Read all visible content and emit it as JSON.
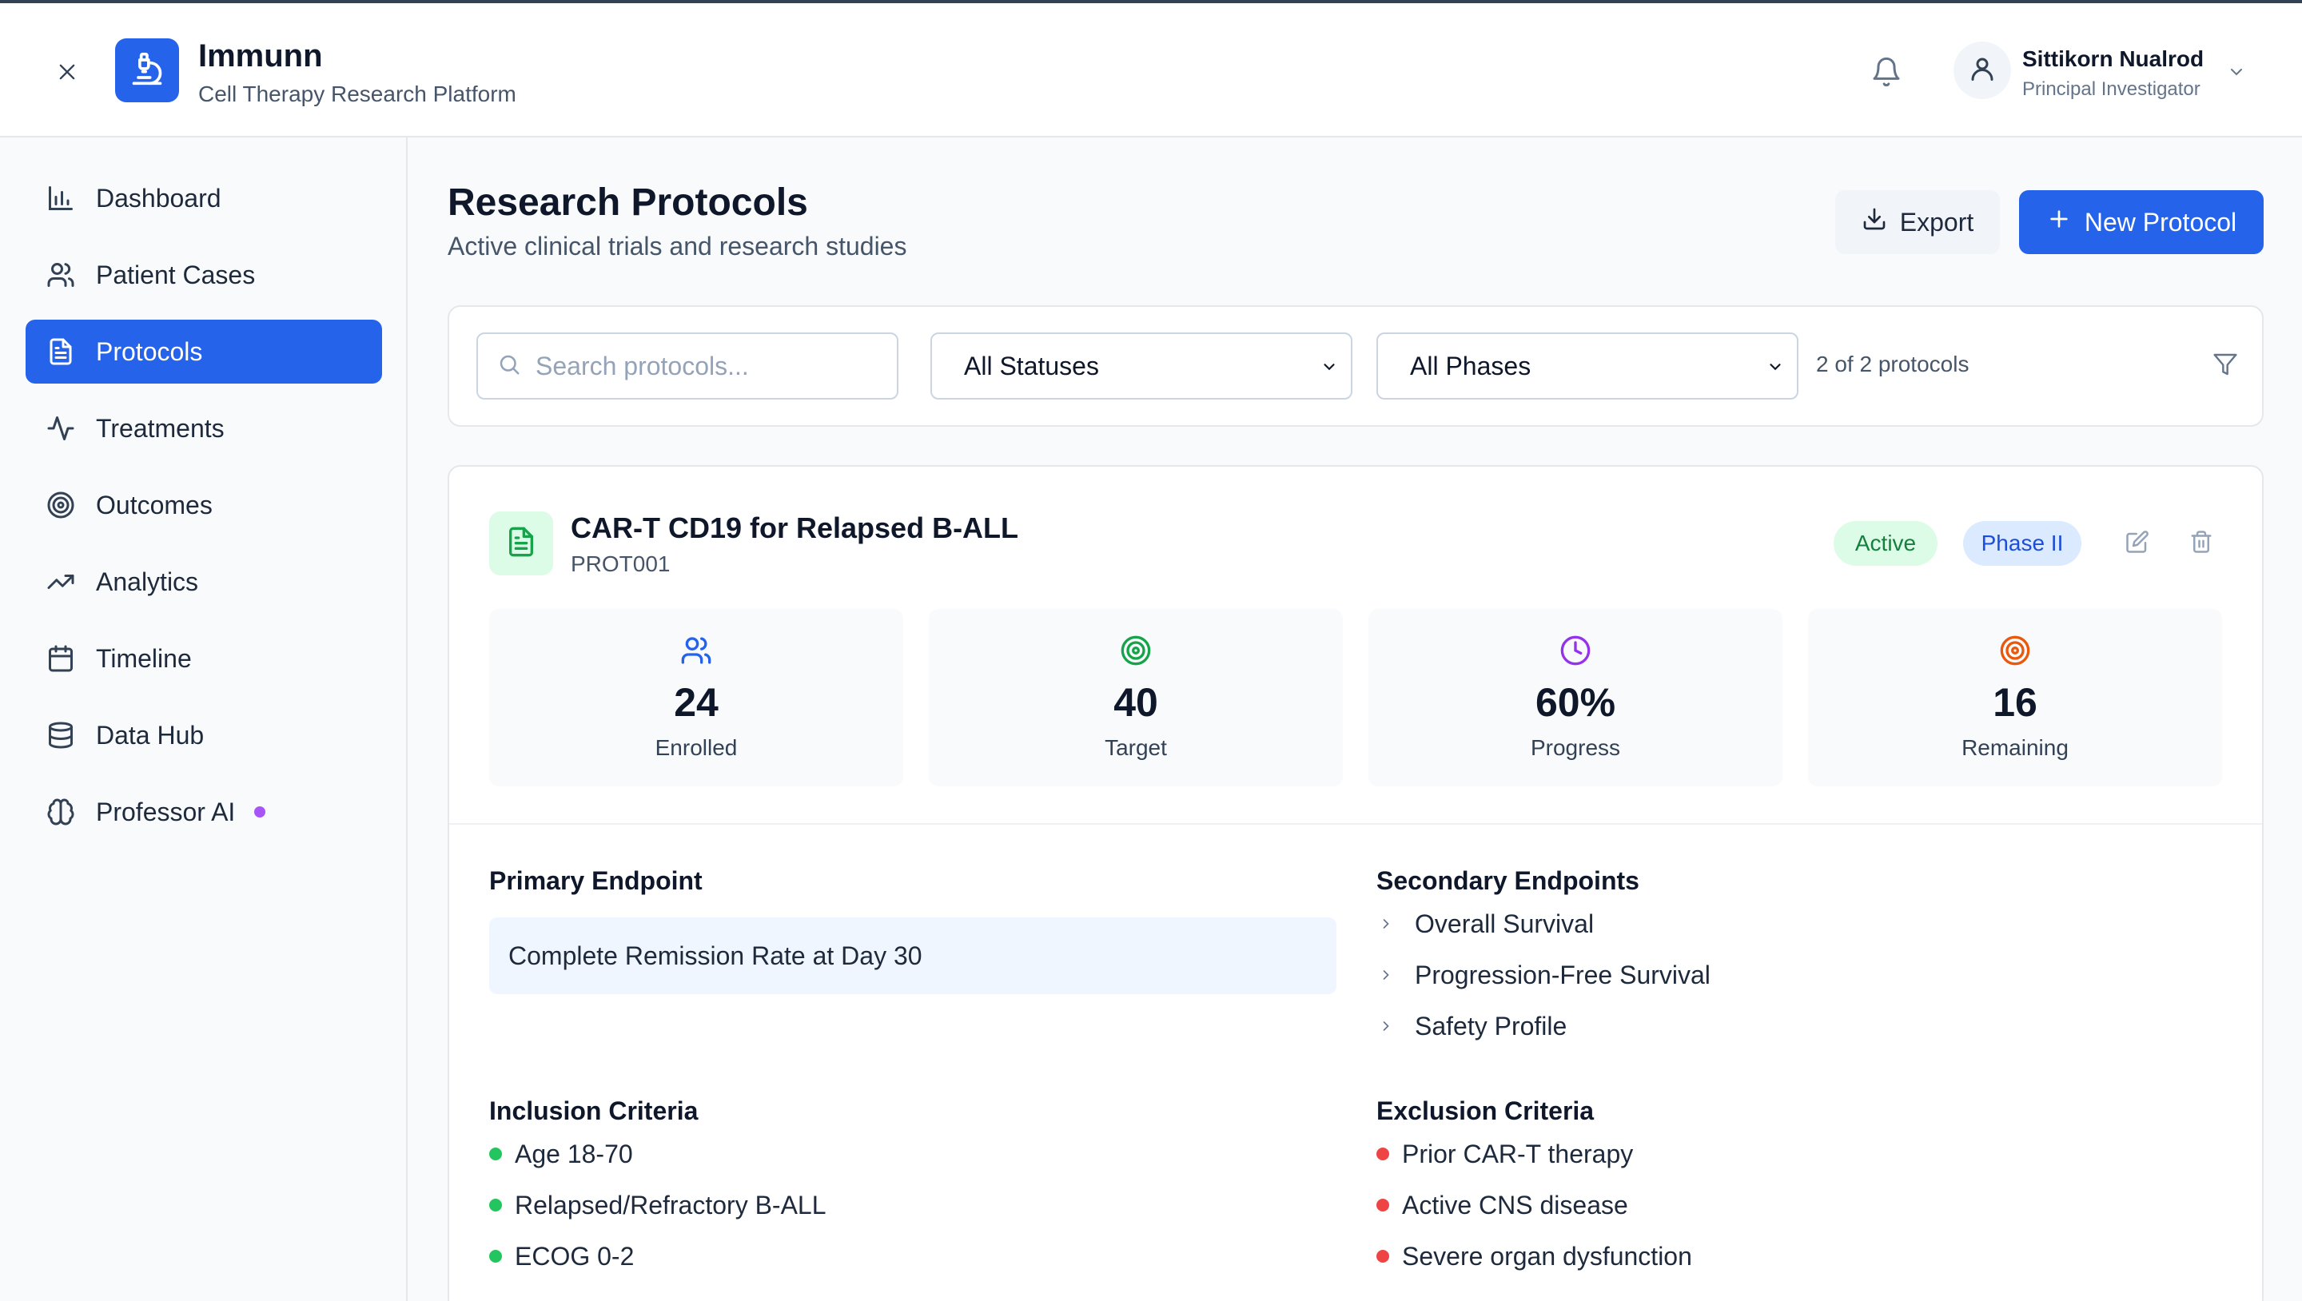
{
  "app": {
    "name": "Immunn",
    "subtitle": "Cell Therapy Research Platform"
  },
  "user": {
    "name": "Sittikorn Nualrod",
    "role": "Principal Investigator"
  },
  "sidebar": {
    "items": [
      {
        "label": "Dashboard",
        "icon": "bar-chart-icon"
      },
      {
        "label": "Patient Cases",
        "icon": "users-icon"
      },
      {
        "label": "Protocols",
        "icon": "document-icon",
        "active": true
      },
      {
        "label": "Treatments",
        "icon": "activity-icon"
      },
      {
        "label": "Outcomes",
        "icon": "target-icon"
      },
      {
        "label": "Analytics",
        "icon": "trending-up-icon"
      },
      {
        "label": "Timeline",
        "icon": "calendar-icon"
      },
      {
        "label": "Data Hub",
        "icon": "database-icon"
      },
      {
        "label": "Professor AI",
        "icon": "brain-icon",
        "dot": true
      }
    ]
  },
  "page": {
    "title": "Research Protocols",
    "subtitle": "Active clinical trials and research studies",
    "export_label": "Export",
    "new_label": "New Protocol"
  },
  "filters": {
    "search_placeholder": "Search protocols...",
    "status_value": "All Statuses",
    "phase_value": "All Phases",
    "count_text": "2 of 2 protocols"
  },
  "protocol": {
    "title": "CAR-T CD19 for Relapsed B-ALL",
    "id": "PROT001",
    "status": "Active",
    "phase": "Phase II",
    "stats": [
      {
        "value": "24",
        "label": "Enrolled",
        "icon": "users-icon",
        "color": "#2563eb"
      },
      {
        "value": "40",
        "label": "Target",
        "icon": "target-icon",
        "color": "#16a34a"
      },
      {
        "value": "60%",
        "label": "Progress",
        "icon": "clock-icon",
        "color": "#9333ea"
      },
      {
        "value": "16",
        "label": "Remaining",
        "icon": "target-icon",
        "color": "#ea580c"
      }
    ],
    "primary_endpoint_title": "Primary Endpoint",
    "primary_endpoint": "Complete Remission Rate at Day 30",
    "secondary_endpoints_title": "Secondary Endpoints",
    "secondary_endpoints": [
      "Overall Survival",
      "Progression-Free Survival",
      "Safety Profile"
    ],
    "inclusion_title": "Inclusion Criteria",
    "inclusion": [
      "Age 18-70",
      "Relapsed/Refractory B-ALL",
      "ECOG 0-2"
    ],
    "exclusion_title": "Exclusion Criteria",
    "exclusion": [
      "Prior CAR-T therapy",
      "Active CNS disease",
      "Severe organ dysfunction"
    ]
  },
  "colors": {
    "primary": "#2563eb",
    "active_badge_bg": "#dcfce7",
    "active_badge_text": "#15803d",
    "phase_badge_bg": "#dbeafe",
    "phase_badge_text": "#1d4ed8",
    "ai_dot": "#a855f7"
  }
}
